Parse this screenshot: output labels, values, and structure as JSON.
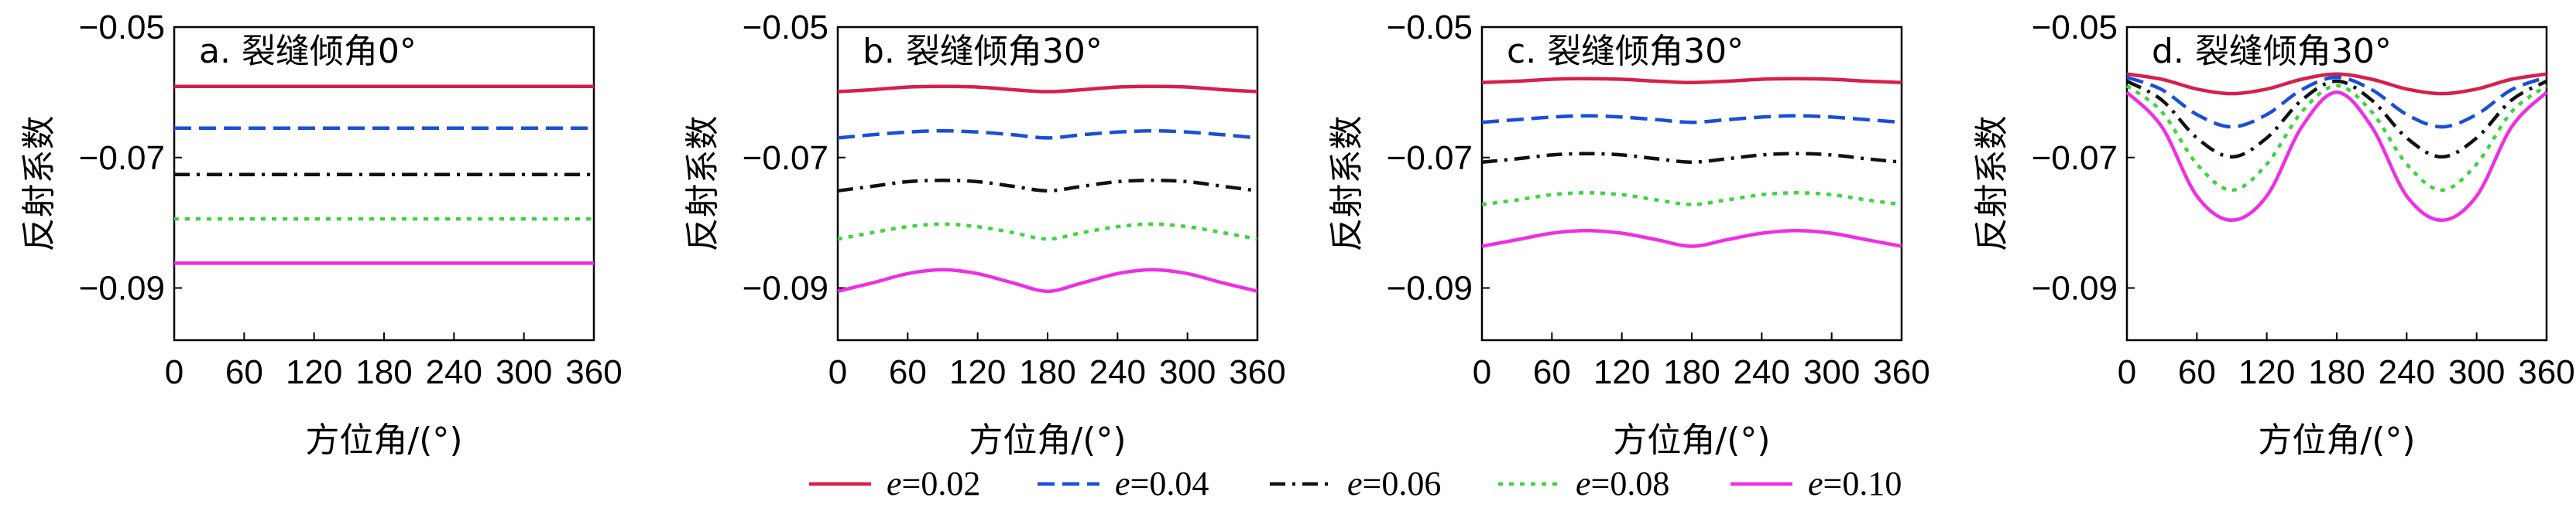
{
  "chart_data": [
    {
      "type": "line",
      "title": "a. 裂缝倾角0°",
      "xlabel": "方位角/(°)",
      "ylabel": "反射系数",
      "xlim": [
        0,
        360
      ],
      "ylim": [
        -0.098,
        -0.05
      ],
      "xticks": [
        0,
        60,
        120,
        180,
        240,
        300,
        360
      ],
      "xtick_labels": [
        "0",
        "60",
        "120",
        "180",
        "240",
        "300",
        "360"
      ],
      "yticks": [
        -0.05,
        -0.07,
        -0.09
      ],
      "ytick_labels": [
        "−0.05",
        "−0.07",
        "−0.09"
      ],
      "x": [
        0,
        30,
        60,
        90,
        120,
        150,
        180,
        210,
        240,
        270,
        300,
        330,
        360
      ],
      "series": [
        {
          "name": "e=0.02",
          "values": [
            -0.0591,
            -0.0591,
            -0.0591,
            -0.0591,
            -0.0591,
            -0.0591,
            -0.0591,
            -0.0591,
            -0.0591,
            -0.0591,
            -0.0591,
            -0.0591,
            -0.0591
          ]
        },
        {
          "name": "e=0.04",
          "values": [
            -0.0655,
            -0.0655,
            -0.0655,
            -0.0655,
            -0.0655,
            -0.0655,
            -0.0655,
            -0.0655,
            -0.0655,
            -0.0655,
            -0.0655,
            -0.0655,
            -0.0655
          ]
        },
        {
          "name": "e=0.06",
          "values": [
            -0.0726,
            -0.0726,
            -0.0726,
            -0.0726,
            -0.0726,
            -0.0726,
            -0.0726,
            -0.0726,
            -0.0726,
            -0.0726,
            -0.0726,
            -0.0726,
            -0.0726
          ]
        },
        {
          "name": "e=0.08",
          "values": [
            -0.0794,
            -0.0794,
            -0.0794,
            -0.0794,
            -0.0794,
            -0.0794,
            -0.0794,
            -0.0794,
            -0.0794,
            -0.0794,
            -0.0794,
            -0.0794,
            -0.0794
          ]
        },
        {
          "name": "e=0.10",
          "values": [
            -0.0862,
            -0.0862,
            -0.0862,
            -0.0862,
            -0.0862,
            -0.0862,
            -0.0862,
            -0.0862,
            -0.0862,
            -0.0862,
            -0.0862,
            -0.0862,
            -0.0862
          ]
        }
      ]
    },
    {
      "type": "line",
      "title": "b. 裂缝倾角30°",
      "xlabel": "方位角/(°)",
      "ylabel": "反射系数",
      "xlim": [
        0,
        360
      ],
      "ylim": [
        -0.098,
        -0.05
      ],
      "xticks": [
        0,
        60,
        120,
        180,
        240,
        300,
        360
      ],
      "xtick_labels": [
        "0",
        "60",
        "120",
        "180",
        "240",
        "300",
        "360"
      ],
      "yticks": [
        -0.05,
        -0.07,
        -0.09
      ],
      "ytick_labels": [
        "−0.05",
        "−0.07",
        "−0.09"
      ],
      "x": [
        0,
        30,
        60,
        90,
        120,
        150,
        180,
        210,
        240,
        270,
        300,
        330,
        360
      ],
      "series": [
        {
          "name": "e=0.02",
          "values": [
            -0.0599,
            -0.0596,
            -0.0592,
            -0.0591,
            -0.0592,
            -0.0596,
            -0.0599,
            -0.0596,
            -0.0592,
            -0.0591,
            -0.0592,
            -0.0596,
            -0.0599
          ]
        },
        {
          "name": "e=0.04",
          "values": [
            -0.067,
            -0.0665,
            -0.0661,
            -0.0659,
            -0.0661,
            -0.0665,
            -0.067,
            -0.0665,
            -0.0661,
            -0.0659,
            -0.0661,
            -0.0665,
            -0.067
          ]
        },
        {
          "name": "e=0.06",
          "values": [
            -0.0751,
            -0.0744,
            -0.0737,
            -0.0735,
            -0.0737,
            -0.0744,
            -0.0751,
            -0.0744,
            -0.0737,
            -0.0735,
            -0.0737,
            -0.0744,
            -0.0751
          ]
        },
        {
          "name": "e=0.08",
          "values": [
            -0.0825,
            -0.0815,
            -0.0806,
            -0.0802,
            -0.0806,
            -0.0815,
            -0.0825,
            -0.0815,
            -0.0806,
            -0.0802,
            -0.0806,
            -0.0815,
            -0.0825
          ]
        },
        {
          "name": "e=0.10",
          "values": [
            -0.0905,
            -0.0892,
            -0.0878,
            -0.0872,
            -0.0878,
            -0.0892,
            -0.0905,
            -0.0892,
            -0.0878,
            -0.0872,
            -0.0878,
            -0.0892,
            -0.0905
          ]
        }
      ]
    },
    {
      "type": "line",
      "title": "c. 裂缝倾角30°",
      "xlabel": "方位角/(°)",
      "ylabel": "反射系数",
      "xlim": [
        0,
        360
      ],
      "ylim": [
        -0.098,
        -0.05
      ],
      "xticks": [
        0,
        60,
        120,
        180,
        240,
        300,
        360
      ],
      "xtick_labels": [
        "0",
        "60",
        "120",
        "180",
        "240",
        "300",
        "360"
      ],
      "yticks": [
        -0.05,
        -0.07,
        -0.09
      ],
      "ytick_labels": [
        "−0.05",
        "−0.07",
        "−0.09"
      ],
      "x": [
        0,
        30,
        60,
        90,
        120,
        150,
        180,
        210,
        240,
        270,
        300,
        330,
        360
      ],
      "series": [
        {
          "name": "e=0.02",
          "values": [
            -0.0585,
            -0.0583,
            -0.058,
            -0.0579,
            -0.058,
            -0.0583,
            -0.0585,
            -0.0583,
            -0.058,
            -0.0579,
            -0.058,
            -0.0583,
            -0.0585
          ]
        },
        {
          "name": "e=0.04",
          "values": [
            -0.0646,
            -0.0642,
            -0.0638,
            -0.0636,
            -0.0638,
            -0.0642,
            -0.0646,
            -0.0642,
            -0.0638,
            -0.0636,
            -0.0638,
            -0.0642,
            -0.0646
          ]
        },
        {
          "name": "e=0.06",
          "values": [
            -0.0707,
            -0.0702,
            -0.0696,
            -0.0694,
            -0.0696,
            -0.0702,
            -0.0707,
            -0.0702,
            -0.0696,
            -0.0694,
            -0.0696,
            -0.0702,
            -0.0707
          ]
        },
        {
          "name": "e=0.08",
          "values": [
            -0.0772,
            -0.0765,
            -0.0757,
            -0.0754,
            -0.0757,
            -0.0765,
            -0.0772,
            -0.0765,
            -0.0757,
            -0.0754,
            -0.0757,
            -0.0765,
            -0.0772
          ]
        },
        {
          "name": "e=0.10",
          "values": [
            -0.0836,
            -0.0826,
            -0.0816,
            -0.0812,
            -0.0816,
            -0.0826,
            -0.0836,
            -0.0826,
            -0.0816,
            -0.0812,
            -0.0816,
            -0.0826,
            -0.0836
          ]
        }
      ]
    },
    {
      "type": "line",
      "title": "d. 裂缝倾角30°",
      "xlabel": "方位角/(°)",
      "ylabel": "反射系数",
      "xlim": [
        0,
        360
      ],
      "ylim": [
        -0.098,
        -0.05
      ],
      "xticks": [
        0,
        60,
        120,
        180,
        240,
        300,
        360
      ],
      "xtick_labels": [
        "0",
        "60",
        "120",
        "180",
        "240",
        "300",
        "360"
      ],
      "yticks": [
        -0.05,
        -0.07,
        -0.09
      ],
      "ytick_labels": [
        "−0.05",
        "−0.07",
        "−0.09"
      ],
      "x": [
        0,
        30,
        60,
        90,
        120,
        150,
        180,
        210,
        240,
        270,
        300,
        330,
        360
      ],
      "series": [
        {
          "name": "e=0.02",
          "values": [
            -0.0572,
            -0.058,
            -0.0595,
            -0.0602,
            -0.0595,
            -0.058,
            -0.0572,
            -0.058,
            -0.0595,
            -0.0602,
            -0.0595,
            -0.058,
            -0.0572
          ]
        },
        {
          "name": "e=0.04",
          "values": [
            -0.0577,
            -0.0596,
            -0.0634,
            -0.0653,
            -0.0634,
            -0.0596,
            -0.0577,
            -0.0596,
            -0.0634,
            -0.0653,
            -0.0634,
            -0.0596,
            -0.0577
          ]
        },
        {
          "name": "e=0.06",
          "values": [
            -0.0583,
            -0.0612,
            -0.067,
            -0.0699,
            -0.067,
            -0.0612,
            -0.0583,
            -0.0612,
            -0.067,
            -0.0699,
            -0.067,
            -0.0612,
            -0.0583
          ]
        },
        {
          "name": "e=0.08",
          "values": [
            -0.059,
            -0.063,
            -0.071,
            -0.075,
            -0.071,
            -0.063,
            -0.059,
            -0.063,
            -0.071,
            -0.075,
            -0.071,
            -0.063,
            -0.059
          ]
        },
        {
          "name": "e=0.10",
          "values": [
            -0.06,
            -0.0653,
            -0.0759,
            -0.0796,
            -0.0759,
            -0.0653,
            -0.06,
            -0.0653,
            -0.0759,
            -0.0796,
            -0.0759,
            -0.0653,
            -0.06
          ]
        }
      ]
    }
  ],
  "legend": {
    "placement": "bottom-center",
    "items": [
      {
        "var": "e",
        "text": "=0.02",
        "color": "#d6204b",
        "dash": "solid"
      },
      {
        "var": "e",
        "text": "=0.04",
        "color": "#1a4fd6",
        "dash": "dash"
      },
      {
        "var": "e",
        "text": "=0.06",
        "color": "#111111",
        "dash": "dashdot"
      },
      {
        "var": "e",
        "text": "=0.08",
        "color": "#3fd43f",
        "dash": "dot"
      },
      {
        "var": "e",
        "text": "=0.10",
        "color": "#ee2fe2",
        "dash": "solid"
      }
    ]
  }
}
